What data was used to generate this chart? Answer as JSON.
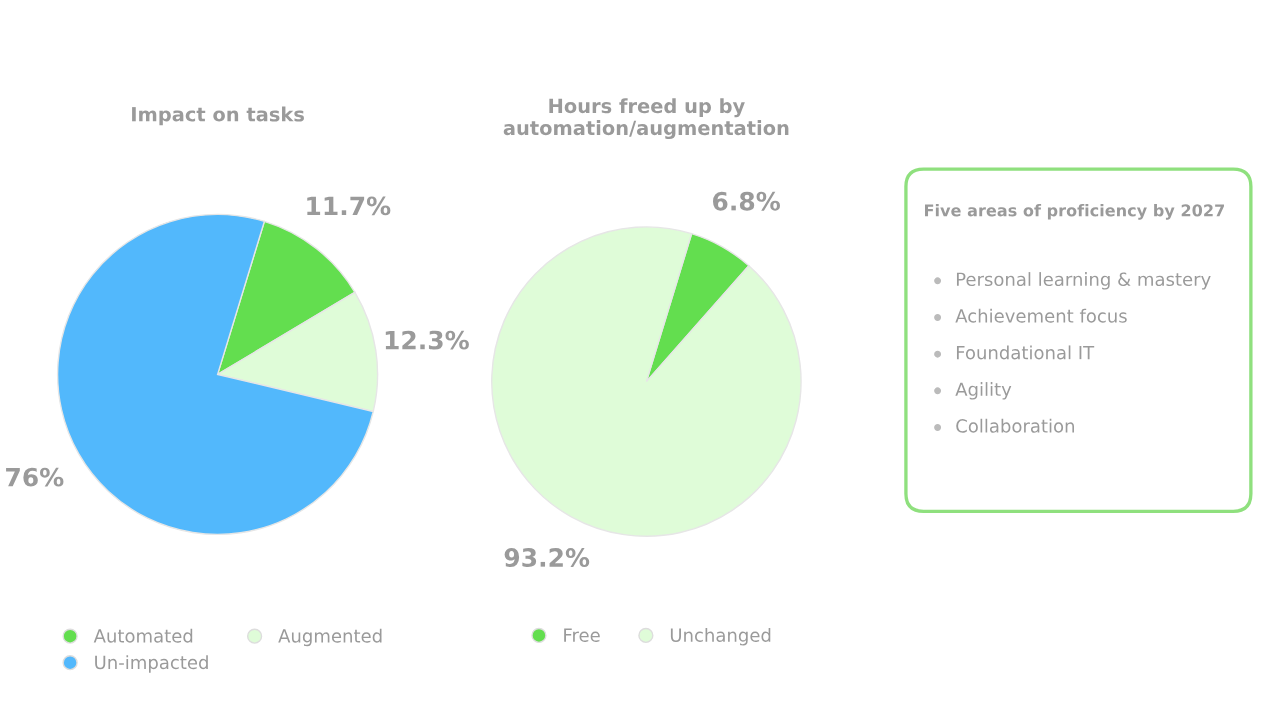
{
  "chart_data": [
    {
      "type": "pie",
      "title": "Impact on tasks",
      "categories": [
        "Automated",
        "Augmented",
        "Un-impacted"
      ],
      "values": [
        11.7,
        12.3,
        76
      ],
      "colors": [
        "#63de4f",
        "#dffcd8",
        "#52b8fc"
      ],
      "value_labels": [
        "11.7%",
        "12.3%",
        "76%"
      ],
      "legend": "bottom"
    },
    {
      "type": "pie",
      "title": "Hours freed up by\nautomation/augmentation",
      "categories": [
        "Free",
        "Unchanged"
      ],
      "values": [
        6.8,
        93.2
      ],
      "colors": [
        "#63de4f",
        "#dffcd8"
      ],
      "value_labels": [
        "6.8%",
        "93.2%"
      ],
      "legend": "bottom"
    },
    {
      "type": "other",
      "title": "Five areas of proficiency by 2027",
      "annotations": [
        "Personal learning & mastery",
        "Achievement focus",
        "Foundational IT",
        "Agility",
        "Collaboration"
      ]
    }
  ]
}
